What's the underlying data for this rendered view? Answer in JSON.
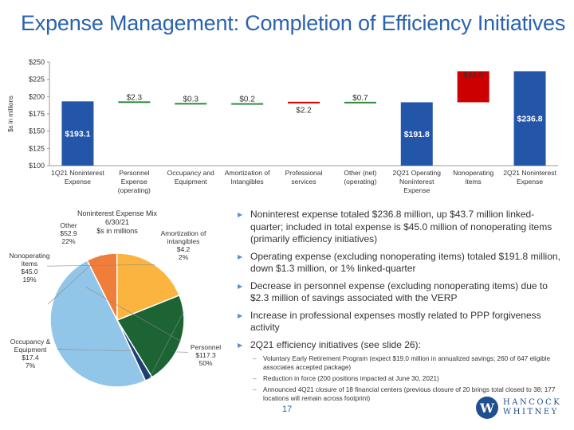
{
  "slide": {
    "title": "Expense Management: Completion of Efficiency Initiatives",
    "page_number": "17",
    "logo_line1": "HANCOCK",
    "logo_line2": "WHITNEY",
    "logo_mark": "W"
  },
  "chart_data": [
    {
      "type": "bar",
      "subtype": "waterfall",
      "ylabel": "$s in millions",
      "ylim": [
        100,
        250
      ],
      "yticks": [
        "$100",
        "$125",
        "$150",
        "$175",
        "$200",
        "$225",
        "$250"
      ],
      "ytick_values": [
        100,
        125,
        150,
        175,
        200,
        225,
        250
      ],
      "grid": false,
      "categories": [
        [
          "1Q21 Noninterest",
          "Expense"
        ],
        [
          "Personnel",
          "Expense",
          "(operating)"
        ],
        [
          "Occupancy and",
          "Equipment"
        ],
        [
          "Amortization of",
          "Intangibles"
        ],
        [
          "Professional",
          "services"
        ],
        [
          "Other (net)",
          "(operating)"
        ],
        [
          "2Q21 Operating",
          "Noninterest",
          "Expense"
        ],
        [
          "Nonoperating",
          "items"
        ],
        [
          "2Q21 Noninterest",
          "Expense"
        ]
      ],
      "bars": [
        {
          "kind": "total",
          "start": 0,
          "end": 193.1,
          "label": "$193.1",
          "color": "#2356a8"
        },
        {
          "kind": "delta",
          "start": 193.1,
          "end": 190.8,
          "label": "$2.3",
          "color": "#2e8b3c"
        },
        {
          "kind": "delta",
          "start": 190.8,
          "end": 190.5,
          "label": "$0.3",
          "color": "#2e8b3c"
        },
        {
          "kind": "delta",
          "start": 190.5,
          "end": 190.3,
          "label": "$0.2",
          "color": "#2e8b3c"
        },
        {
          "kind": "delta",
          "start": 190.3,
          "end": 192.5,
          "label": "$2.2",
          "color": "#cc0000"
        },
        {
          "kind": "delta",
          "start": 192.5,
          "end": 191.8,
          "label": "$0.7",
          "color": "#2e8b3c"
        },
        {
          "kind": "total",
          "start": 0,
          "end": 191.8,
          "label": "$191.8",
          "color": "#2356a8"
        },
        {
          "kind": "delta",
          "start": 191.8,
          "end": 236.8,
          "label": "$45.0",
          "color": "#cc0000"
        },
        {
          "kind": "total",
          "start": 0,
          "end": 236.8,
          "label": "$236.8",
          "color": "#2356a8"
        }
      ]
    },
    {
      "type": "pie",
      "title": [
        "Noninterest Expense Mix",
        "6/30/21",
        "$s in millions"
      ],
      "slices": [
        {
          "name": "Personnel",
          "value": 117.3,
          "pct": "50%",
          "label": [
            "Personnel",
            "$117.3",
            "50%"
          ],
          "color": "#92c6e8"
        },
        {
          "name": "Occupancy & Equipment",
          "value": 17.4,
          "pct": "7%",
          "label": [
            "Occupancy &",
            "Equipment",
            "$17.4",
            "7%"
          ],
          "color": "#f07e3a"
        },
        {
          "name": "Nonoperating items",
          "value": 45.0,
          "pct": "19%",
          "label": [
            "Nonoperating",
            "items",
            "$45.0",
            "19%"
          ],
          "color": "#fab43f"
        },
        {
          "name": "Other",
          "value": 52.9,
          "pct": "22%",
          "label": [
            "Other",
            "$52.9",
            "22%"
          ],
          "color": "#1c6433"
        },
        {
          "name": "Amortization of intangibles",
          "value": 4.2,
          "pct": "2%",
          "label": [
            "Amortization of",
            "intangibles",
            "$4.2",
            "2%"
          ],
          "color": "#1c3f73"
        }
      ]
    }
  ],
  "bullets": [
    {
      "text": "Noninterest expense totaled $236.8 million, up $43.7 million linked-quarter; included in total expense is $45.0 million of nonoperating items (primarily efficiency initiatives)"
    },
    {
      "text": "Operating expense (excluding nonoperating items) totaled $191.8 million, down $1.3 million, or 1% linked-quarter"
    },
    {
      "text": "Decrease in personnel expense (excluding nonoperating items) due to $2.3 million of savings associated with the VERP"
    },
    {
      "text": "Increase in professional expenses mostly related to PPP forgiveness activity"
    },
    {
      "text": "2Q21 efficiency initiatives (see slide 26):"
    }
  ],
  "sub_bullets": [
    "Voluntary Early Retirement Program (expect $19.0 million in annualized savings; 260 of 647 eligible associates accepted package)",
    "Reduction in force (200 positions impacted at June 30, 2021)",
    "Announced 4Q21 closure of 18 financial centers (previous closure of 20 brings total closed to 38; 177 locations will remain across footprint)"
  ]
}
